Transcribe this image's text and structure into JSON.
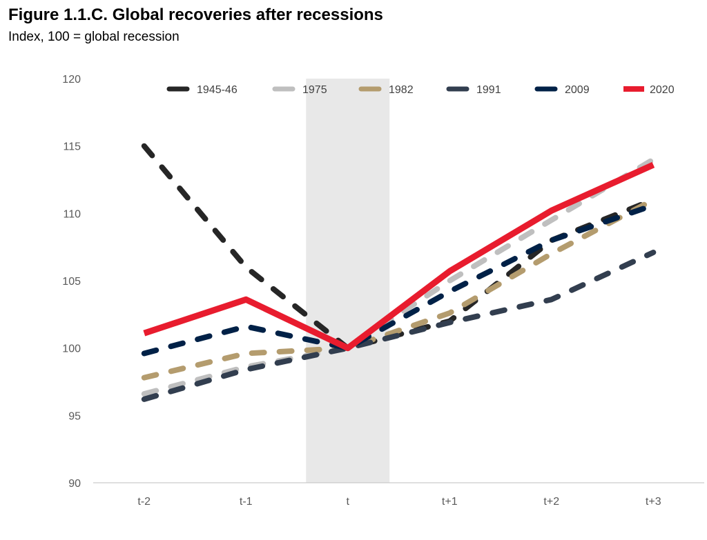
{
  "title": "Figure 1.1.C. Global recoveries after recessions",
  "subtitle": "Index, 100 = global recession",
  "chart_data": {
    "type": "line",
    "categories": [
      "t-2",
      "t-1",
      "t",
      "t+1",
      "t+2",
      "t+3"
    ],
    "ylim": [
      90,
      120
    ],
    "yticks": [
      90,
      95,
      100,
      105,
      110,
      115,
      120
    ],
    "grid": false,
    "legend_position": "top",
    "shaded_category": "t",
    "series": [
      {
        "name": "1945-46",
        "values": [
          115.0,
          106.0,
          100.0,
          102.0,
          108.0,
          111.0
        ],
        "color": "#262626",
        "dashed": true
      },
      {
        "name": "1975",
        "values": [
          96.6,
          98.6,
          100.0,
          105.0,
          109.5,
          114.0
        ],
        "color": "#bfbfbf",
        "dashed": true
      },
      {
        "name": "1982",
        "values": [
          97.8,
          99.6,
          100.0,
          102.6,
          107.0,
          111.0
        ],
        "color": "#b49c6e",
        "dashed": true
      },
      {
        "name": "1991",
        "values": [
          96.2,
          98.4,
          100.0,
          101.9,
          103.6,
          107.1
        ],
        "color": "#323e4f",
        "dashed": true
      },
      {
        "name": "2009",
        "values": [
          99.6,
          101.6,
          100.0,
          104.2,
          108.0,
          110.6
        ],
        "color": "#002147",
        "dashed": true
      },
      {
        "name": "2020",
        "values": [
          101.1,
          103.6,
          100.0,
          105.7,
          110.2,
          113.6
        ],
        "color": "#e81c2e",
        "dashed": false
      }
    ]
  }
}
